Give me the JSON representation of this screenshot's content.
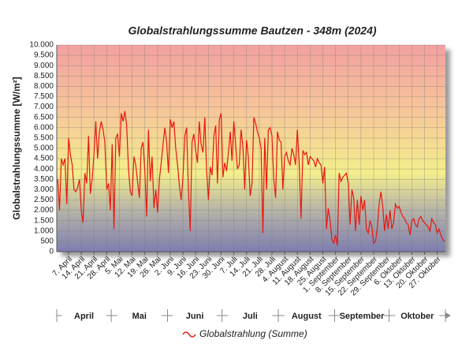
{
  "chart_data": {
    "type": "line",
    "title": "Globalstrahlungssumme Bautzen - 348m (2024)",
    "y_label": "Globalstrahlungssumme [W/m²]",
    "categories": [
      null,
      null,
      null,
      null,
      null,
      null,
      "7. April",
      null,
      null,
      null,
      null,
      null,
      null,
      "14. April",
      null,
      null,
      null,
      null,
      null,
      null,
      "21. April",
      null,
      null,
      null,
      null,
      null,
      null,
      "28. April",
      null,
      null,
      null,
      null,
      null,
      null,
      "5. Mai",
      null,
      null,
      null,
      null,
      null,
      null,
      "12. Mai",
      null,
      null,
      null,
      null,
      null,
      null,
      "19. Mai",
      null,
      null,
      null,
      null,
      null,
      null,
      "26. Mai",
      null,
      null,
      null,
      null,
      null,
      null,
      "2. Juni",
      null,
      null,
      null,
      null,
      null,
      null,
      "9. Juni",
      null,
      null,
      null,
      null,
      null,
      null,
      "16. Juni",
      null,
      null,
      null,
      null,
      null,
      null,
      "23. Juni",
      null,
      null,
      null,
      null,
      null,
      null,
      "30. Juni",
      null,
      null,
      null,
      null,
      null,
      null,
      "7. Juli",
      null,
      null,
      null,
      null,
      null,
      null,
      "14. Juli",
      null,
      null,
      null,
      null,
      null,
      null,
      "21. Juli",
      null,
      null,
      null,
      null,
      null,
      null,
      "28. Juli",
      null,
      null,
      null,
      null,
      null,
      null,
      "4. August",
      null,
      null,
      null,
      null,
      null,
      null,
      "11. August",
      null,
      null,
      null,
      null,
      null,
      null,
      "18. August",
      null,
      null,
      null,
      null,
      null,
      null,
      "25. August",
      null,
      null,
      null,
      null,
      null,
      null,
      "1. September",
      null,
      null,
      null,
      null,
      null,
      null,
      "8. September",
      null,
      null,
      null,
      null,
      null,
      null,
      "15. September",
      null,
      null,
      null,
      null,
      null,
      null,
      "22. September",
      null,
      null,
      null,
      null,
      null,
      null,
      "29. September",
      null,
      null,
      null,
      null,
      null,
      null,
      "6. Oktober",
      null,
      null,
      null,
      null,
      null,
      null,
      "13. Oktober",
      null,
      null,
      null,
      null,
      null,
      null,
      "20. Oktober",
      null,
      null,
      null,
      null,
      null,
      null,
      "27. Oktober",
      null,
      null,
      null,
      null
    ],
    "months": [
      "April",
      "Mai",
      "Juni",
      "Juli",
      "August",
      "September",
      "Oktober"
    ],
    "series": [
      {
        "name": "Globalstrahlung (Summe)",
        "color": "#e8170f",
        "values": [
          3500,
          2000,
          4500,
          4200,
          4500,
          2300,
          5500,
          4700,
          4200,
          3000,
          2900,
          3100,
          3500,
          2000,
          1400,
          3800,
          3300,
          5600,
          2800,
          3500,
          4700,
          6300,
          4500,
          5800,
          6300,
          5900,
          5300,
          3000,
          3300,
          2000,
          5200,
          1100,
          5500,
          5700,
          4600,
          6700,
          6300,
          6800,
          6100,
          4000,
          2900,
          2700,
          4600,
          4200,
          3400,
          2600,
          5000,
          5300,
          3900,
          1700,
          5900,
          3400,
          4600,
          2100,
          3000,
          1900,
          3500,
          4300,
          5200,
          6000,
          5300,
          3800,
          6400,
          6000,
          6300,
          5000,
          4200,
          3200,
          2500,
          3600,
          5600,
          6000,
          3000,
          1000,
          5300,
          5700,
          4900,
          4300,
          6300,
          5200,
          4800,
          6500,
          3900,
          2500,
          4100,
          3700,
          5600,
          6100,
          3300,
          6400,
          6700,
          3600,
          4300,
          3900,
          4800,
          5800,
          4400,
          6300,
          5200,
          4000,
          4200,
          5900,
          5100,
          3000,
          5400,
          4600,
          2700,
          3300,
          6500,
          6200,
          5800,
          5500,
          5000,
          900,
          5500,
          3000,
          5900,
          6000,
          5600,
          3500,
          2600,
          5800,
          5400,
          5300,
          3000,
          4600,
          4800,
          4400,
          4200,
          5000,
          4700,
          4200,
          5900,
          4300,
          1600,
          4900,
          4700,
          4800,
          4200,
          4600,
          4500,
          4400,
          4100,
          4500,
          4300,
          4200,
          3300,
          4100,
          1100,
          2100,
          1500,
          600,
          400,
          800,
          300,
          3800,
          3400,
          3600,
          3700,
          3800,
          3300,
          1300,
          3000,
          2600,
          1000,
          2500,
          1300,
          2700,
          2000,
          2500,
          1100,
          900,
          1500,
          1200,
          400,
          500,
          1100,
          2300,
          2900,
          2200,
          1000,
          1800,
          1100,
          2000,
          1100,
          1400,
          2300,
          2100,
          2200,
          1900,
          1700,
          1600,
          1400,
          1300,
          800,
          1500,
          1600,
          1300,
          1200,
          1600,
          1700,
          1500,
          1400,
          1300,
          1200,
          1000,
          1600,
          1400,
          1300,
          900,
          1100,
          800,
          600,
          500
        ]
      }
    ],
    "ylim": [
      0,
      10000
    ],
    "yticks": [
      0,
      {
        "value": 500,
        "label": "500"
      },
      {
        "value": 1000,
        "label": "1.000"
      },
      {
        "value": 1500,
        "label": "1.500"
      },
      {
        "value": 2000,
        "label": "2.000"
      },
      {
        "value": 2500,
        "label": "2.500"
      },
      {
        "value": 3000,
        "label": "3.000"
      },
      {
        "value": 3500,
        "label": "3.500"
      },
      {
        "value": 4000,
        "label": "4.000"
      },
      {
        "value": 4500,
        "label": "4.500"
      },
      {
        "value": 5000,
        "label": "5.000"
      },
      {
        "value": 5500,
        "label": "5.500"
      },
      {
        "value": 6000,
        "label": "6.000"
      },
      {
        "value": 6500,
        "label": "6.500"
      },
      {
        "value": 7000,
        "label": "7.000"
      },
      {
        "value": 7500,
        "label": "7.500"
      },
      {
        "value": 8000,
        "label": "8.000"
      },
      {
        "value": 8500,
        "label": "8.500"
      },
      {
        "value": 9000,
        "label": "9.000"
      },
      {
        "value": 9500,
        "label": "9.500"
      },
      {
        "value": 10000,
        "label": "10.000"
      }
    ],
    "grid": true
  }
}
